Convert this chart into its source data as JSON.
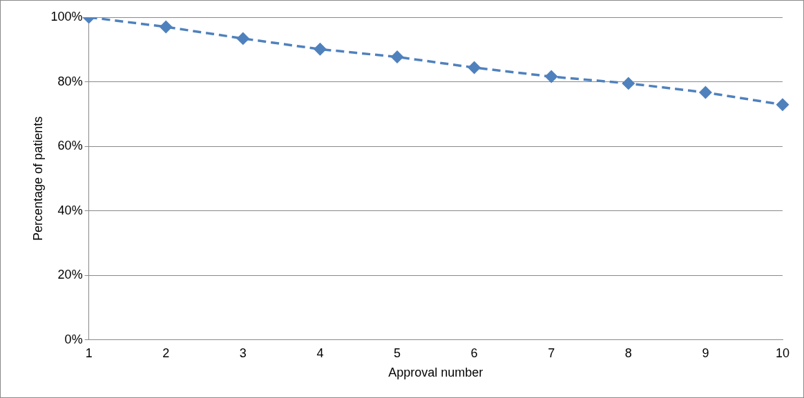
{
  "chart_data": {
    "type": "line",
    "xlabel": "Approval number",
    "ylabel": "Percentage of patients",
    "categories": [
      "1",
      "2",
      "3",
      "4",
      "5",
      "6",
      "7",
      "8",
      "9",
      "10"
    ],
    "series": [
      {
        "color": "#4f81bd",
        "values": [
          100,
          97,
          93.4,
          90.1,
          87.7,
          84.4,
          81.6,
          79.5,
          76.7,
          72.9
        ]
      }
    ],
    "ylim": [
      0,
      100
    ],
    "yticks": [
      {
        "value": 0,
        "label": "0%"
      },
      {
        "value": 20,
        "label": "20%"
      },
      {
        "value": 40,
        "label": "40%"
      },
      {
        "value": 60,
        "label": "60%"
      },
      {
        "value": 80,
        "label": "80%"
      },
      {
        "value": 100,
        "label": "100%"
      }
    ],
    "grid": "y",
    "marker": "diamond",
    "line_style": "dashed",
    "legend": false
  }
}
